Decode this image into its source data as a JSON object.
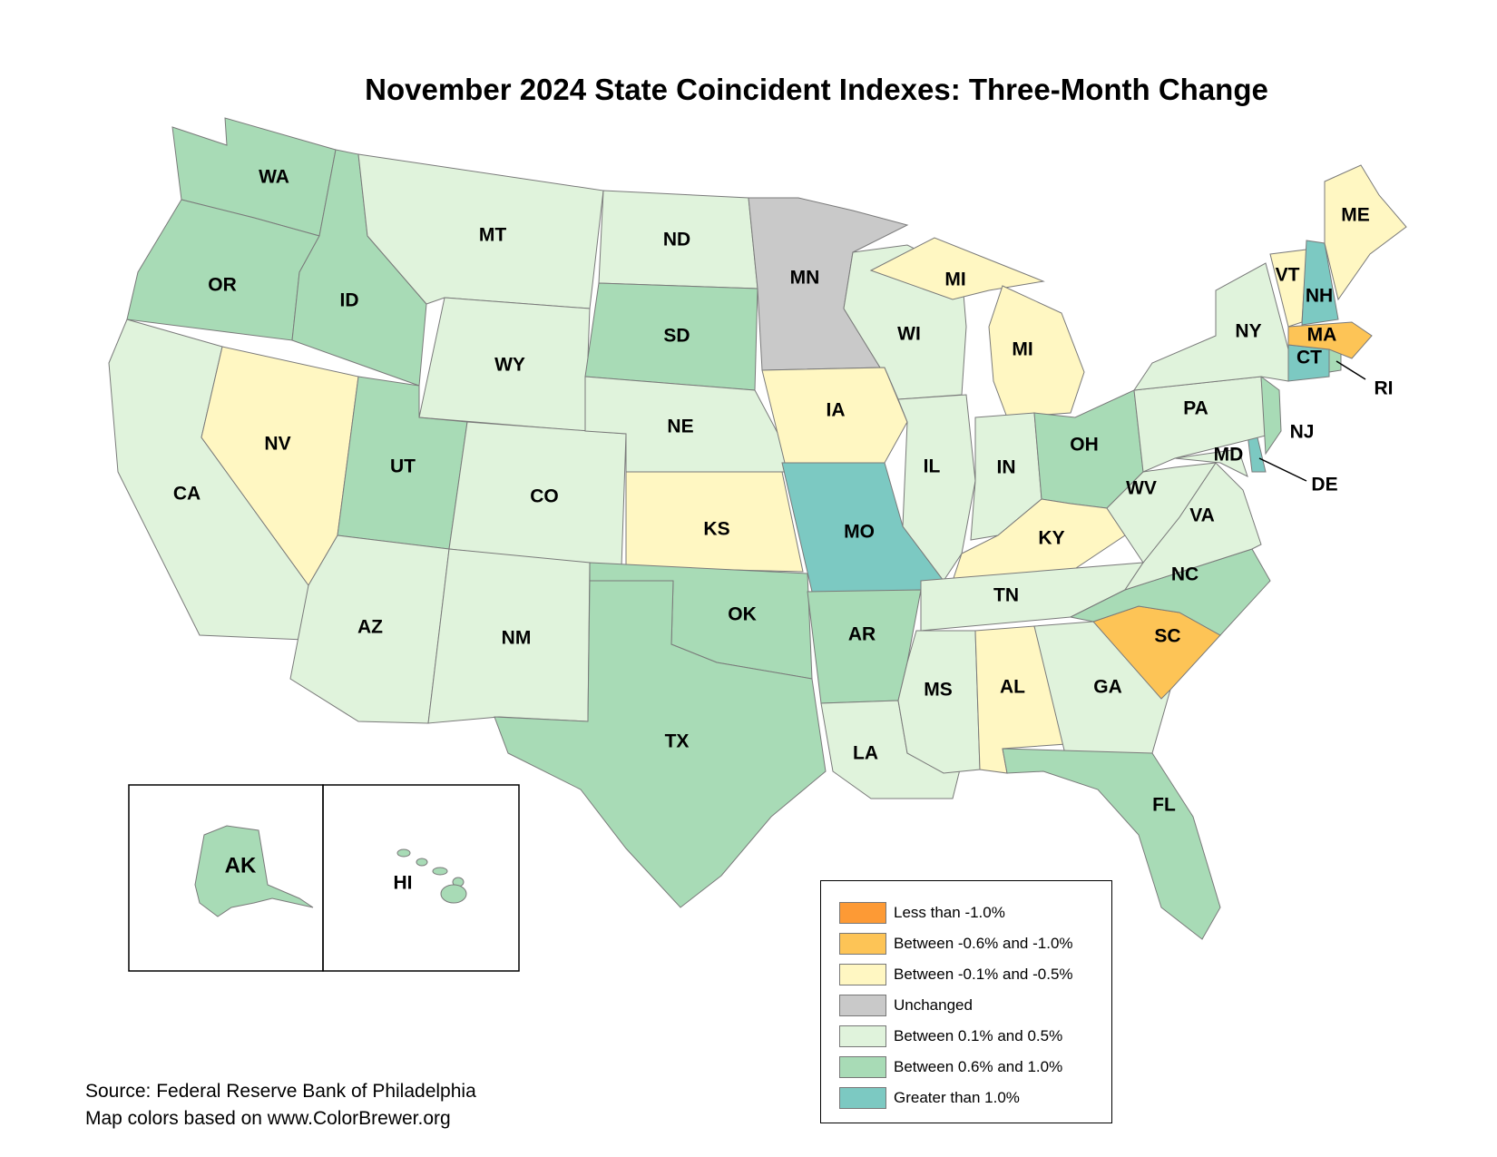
{
  "title": "November 2024 State Coincident Indexes: Three-Month Change",
  "colors": {
    "lt_neg1": "#fd9a35",
    "neg06_neg1": "#fdc456",
    "neg01_neg05": "#fff7c2",
    "unchanged": "#c9c9c9",
    "p01_p05": "#e0f3dc",
    "p06_p1": "#a8dbb6",
    "gt_p1": "#7cc9c2"
  },
  "legend": [
    {
      "key": "lt_neg1",
      "label": "Less than -1.0%"
    },
    {
      "key": "neg06_neg1",
      "label": "Between -0.6% and -1.0%"
    },
    {
      "key": "neg01_neg05",
      "label": "Between -0.1% and -0.5%"
    },
    {
      "key": "unchanged",
      "label": "Unchanged"
    },
    {
      "key": "p01_p05",
      "label": "Between 0.1% and 0.5%"
    },
    {
      "key": "p06_p1",
      "label": "Between 0.6% and 1.0%"
    },
    {
      "key": "gt_p1",
      "label": "Greater than 1.0%"
    }
  ],
  "states": [
    {
      "abbr": "WA",
      "cat": "p06_p1"
    },
    {
      "abbr": "OR",
      "cat": "p06_p1"
    },
    {
      "abbr": "CA",
      "cat": "p01_p05"
    },
    {
      "abbr": "NV",
      "cat": "neg01_neg05"
    },
    {
      "abbr": "ID",
      "cat": "p06_p1"
    },
    {
      "abbr": "MT",
      "cat": "p01_p05"
    },
    {
      "abbr": "WY",
      "cat": "p01_p05"
    },
    {
      "abbr": "UT",
      "cat": "p06_p1"
    },
    {
      "abbr": "AZ",
      "cat": "p01_p05"
    },
    {
      "abbr": "CO",
      "cat": "p01_p05"
    },
    {
      "abbr": "NM",
      "cat": "p01_p05"
    },
    {
      "abbr": "ND",
      "cat": "p01_p05"
    },
    {
      "abbr": "SD",
      "cat": "p06_p1"
    },
    {
      "abbr": "NE",
      "cat": "p01_p05"
    },
    {
      "abbr": "KS",
      "cat": "neg01_neg05"
    },
    {
      "abbr": "OK",
      "cat": "p06_p1"
    },
    {
      "abbr": "TX",
      "cat": "p06_p1"
    },
    {
      "abbr": "MN",
      "cat": "unchanged"
    },
    {
      "abbr": "IA",
      "cat": "neg01_neg05"
    },
    {
      "abbr": "MO",
      "cat": "gt_p1"
    },
    {
      "abbr": "AR",
      "cat": "p06_p1"
    },
    {
      "abbr": "LA",
      "cat": "p01_p05"
    },
    {
      "abbr": "WI",
      "cat": "p01_p05"
    },
    {
      "abbr": "IL",
      "cat": "p01_p05"
    },
    {
      "abbr": "MI",
      "cat": "neg01_neg05"
    },
    {
      "abbr": "IN",
      "cat": "p01_p05"
    },
    {
      "abbr": "OH",
      "cat": "p06_p1"
    },
    {
      "abbr": "KY",
      "cat": "neg01_neg05"
    },
    {
      "abbr": "TN",
      "cat": "p01_p05"
    },
    {
      "abbr": "MS",
      "cat": "p01_p05"
    },
    {
      "abbr": "AL",
      "cat": "neg01_neg05"
    },
    {
      "abbr": "GA",
      "cat": "p01_p05"
    },
    {
      "abbr": "FL",
      "cat": "p06_p1"
    },
    {
      "abbr": "SC",
      "cat": "neg06_neg1"
    },
    {
      "abbr": "NC",
      "cat": "p06_p1"
    },
    {
      "abbr": "VA",
      "cat": "p01_p05"
    },
    {
      "abbr": "WV",
      "cat": "p01_p05"
    },
    {
      "abbr": "MD",
      "cat": "p01_p05"
    },
    {
      "abbr": "DE",
      "cat": "gt_p1"
    },
    {
      "abbr": "PA",
      "cat": "p01_p05"
    },
    {
      "abbr": "NJ",
      "cat": "p06_p1"
    },
    {
      "abbr": "NY",
      "cat": "p01_p05"
    },
    {
      "abbr": "CT",
      "cat": "gt_p1"
    },
    {
      "abbr": "RI",
      "cat": "p06_p1"
    },
    {
      "abbr": "MA",
      "cat": "neg06_neg1"
    },
    {
      "abbr": "VT",
      "cat": "neg01_neg05"
    },
    {
      "abbr": "NH",
      "cat": "gt_p1"
    },
    {
      "abbr": "ME",
      "cat": "neg01_neg05"
    },
    {
      "abbr": "AK",
      "cat": "p06_p1"
    },
    {
      "abbr": "HI",
      "cat": "p06_p1"
    }
  ],
  "source": {
    "line1": "Source: Federal Reserve Bank of Philadelphia",
    "line2": "Map colors based on www.ColorBrewer.org"
  }
}
